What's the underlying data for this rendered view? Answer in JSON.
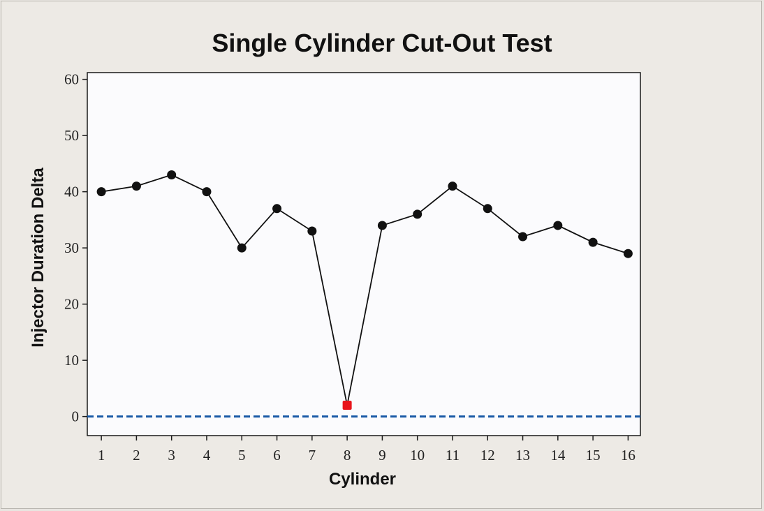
{
  "chart_data": {
    "type": "line",
    "title": "Single Cylinder Cut-Out Test",
    "xlabel": "Cylinder",
    "ylabel": "Injector Duration Delta",
    "x": [
      1,
      2,
      3,
      4,
      5,
      6,
      7,
      8,
      9,
      10,
      11,
      12,
      13,
      14,
      15,
      16
    ],
    "xticks": [
      "1",
      "2",
      "3",
      "4",
      "5",
      "6",
      "7",
      "8",
      "9",
      "10",
      "11",
      "12",
      "13",
      "14",
      "15",
      "16"
    ],
    "yticks": [
      "0",
      "10",
      "20",
      "30",
      "40",
      "50",
      "60"
    ],
    "series": [
      {
        "values": [
          40,
          41,
          43,
          40,
          30,
          37,
          33,
          2,
          34,
          36,
          41,
          37,
          32,
          34,
          31,
          29
        ],
        "color": "#111111",
        "highlight_index": 7,
        "highlight_color": "#e8141b"
      }
    ],
    "reference_line": {
      "y": 0,
      "style": "dashed",
      "color": "#1a5aa6"
    },
    "xlim": [
      0.6,
      16.35
    ],
    "ylim": [
      -3.4,
      61.2
    ],
    "grid": false,
    "legend": "none"
  }
}
